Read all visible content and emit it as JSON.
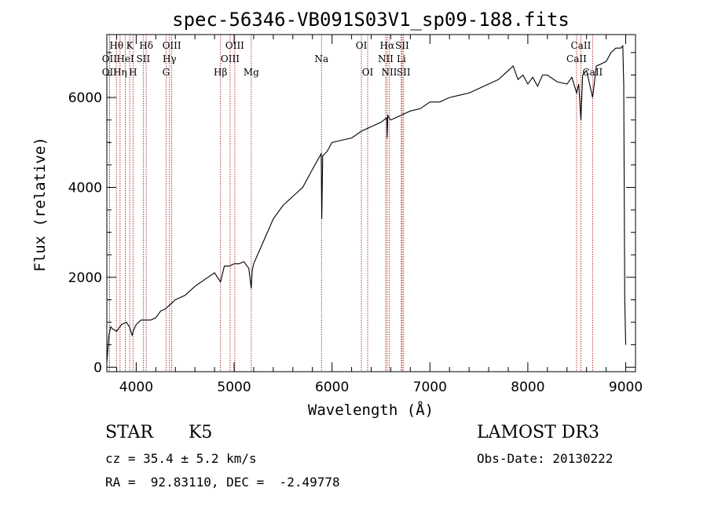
{
  "chart_data": {
    "type": "line",
    "title": "spec-56346-VB091S03V1_sp09-188.fits",
    "xlabel": "Wavelength (Å)",
    "ylabel": "Flux (relative)",
    "xlim": [
      3700,
      9100
    ],
    "ylim": [
      -100,
      7400
    ],
    "xticks": [
      4000,
      5000,
      6000,
      7000,
      8000,
      9000
    ],
    "xtick_labels": [
      "4000",
      "5000",
      "6000",
      "7000",
      "8000",
      "9000"
    ],
    "yticks": [
      0,
      2000,
      4000,
      6000
    ],
    "ytick_labels": [
      "0",
      "2000",
      "4000",
      "6000"
    ],
    "series": [
      {
        "name": "spectrum",
        "color": "#000000",
        "x": [
          3700,
          3720,
          3740,
          3760,
          3800,
          3850,
          3900,
          3930,
          3960,
          3968,
          4000,
          4050,
          4100,
          4150,
          4200,
          4250,
          4300,
          4350,
          4400,
          4500,
          4600,
          4700,
          4800,
          4861,
          4900,
          4950,
          5000,
          5050,
          5100,
          5150,
          5175,
          5185,
          5200,
          5300,
          5400,
          5500,
          5600,
          5700,
          5800,
          5850,
          5890,
          5895,
          5905,
          5950,
          6000,
          6100,
          6200,
          6300,
          6400,
          6500,
          6560,
          6563,
          6570,
          6600,
          6700,
          6800,
          6900,
          7000,
          7100,
          7200,
          7300,
          7400,
          7500,
          7600,
          7700,
          7800,
          7850,
          7900,
          7950,
          8000,
          8050,
          8100,
          8150,
          8200,
          8300,
          8400,
          8450,
          8498,
          8520,
          8542,
          8560,
          8600,
          8662,
          8700,
          8750,
          8800,
          8850,
          8900,
          8950,
          8970,
          8980,
          8990,
          9000
        ],
        "values": [
          100,
          700,
          900,
          850,
          800,
          950,
          1000,
          900,
          700,
          800,
          950,
          1050,
          1050,
          1050,
          1100,
          1250,
          1300,
          1400,
          1500,
          1600,
          1800,
          1950,
          2100,
          1900,
          2250,
          2250,
          2300,
          2300,
          2350,
          2200,
          1750,
          2150,
          2300,
          2800,
          3300,
          3600,
          3800,
          4000,
          4400,
          4600,
          4750,
          3300,
          4700,
          4800,
          5000,
          5050,
          5100,
          5250,
          5350,
          5450,
          5550,
          5100,
          5600,
          5500,
          5600,
          5700,
          5750,
          5900,
          5900,
          6000,
          6050,
          6100,
          6200,
          6300,
          6400,
          6600,
          6700,
          6400,
          6500,
          6300,
          6450,
          6250,
          6500,
          6500,
          6350,
          6300,
          6450,
          6100,
          6300,
          5500,
          6500,
          6600,
          6000,
          6700,
          6750,
          6800,
          7000,
          7100,
          7100,
          7150,
          6300,
          1500,
          500
        ]
      }
    ],
    "lines": [
      {
        "label": "Hθ",
        "wl": 3798,
        "row": 0
      },
      {
        "label": "OII",
        "wl": 3727,
        "row": 1
      },
      {
        "label": "OII",
        "wl": 3727,
        "row": 2
      },
      {
        "label": "Hη",
        "wl": 3835,
        "row": 2
      },
      {
        "label": "HeI",
        "wl": 3889,
        "row": 1
      },
      {
        "label": "K",
        "wl": 3934,
        "row": 0
      },
      {
        "label": "H",
        "wl": 3968,
        "row": 2
      },
      {
        "label": "SII",
        "wl": 4072,
        "row": 1
      },
      {
        "label": "Hδ",
        "wl": 4102,
        "row": 0
      },
      {
        "label": "OIII",
        "wl": 4363,
        "row": 0
      },
      {
        "label": "Hγ",
        "wl": 4340,
        "row": 1
      },
      {
        "label": "G",
        "wl": 4305,
        "row": 2
      },
      {
        "label": "Hβ",
        "wl": 4861,
        "row": 2
      },
      {
        "label": "OIII",
        "wl": 5007,
        "row": 0
      },
      {
        "label": "OIII",
        "wl": 4959,
        "row": 1
      },
      {
        "label": "Mg",
        "wl": 5175,
        "row": 2
      },
      {
        "label": "Na",
        "wl": 5893,
        "row": 1
      },
      {
        "label": "OI",
        "wl": 6300,
        "row": 0
      },
      {
        "label": "OI",
        "wl": 6364,
        "row": 2
      },
      {
        "label": "Hα",
        "wl": 6563,
        "row": 0
      },
      {
        "label": "NII",
        "wl": 6548,
        "row": 1
      },
      {
        "label": "NII",
        "wl": 6584,
        "row": 2
      },
      {
        "label": "SII",
        "wl": 6716,
        "row": 0
      },
      {
        "label": "Li",
        "wl": 6708,
        "row": 1
      },
      {
        "label": "SII",
        "wl": 6731,
        "row": 2
      },
      {
        "label": "CaII",
        "wl": 8542,
        "row": 0
      },
      {
        "label": "CaII",
        "wl": 8498,
        "row": 1
      },
      {
        "label": "CaII",
        "wl": 8662,
        "row": 2
      }
    ],
    "line_color": "#b22222"
  },
  "info": {
    "object_class": "STAR",
    "subclass": "K5",
    "survey": "LAMOST DR3",
    "cz": "cz = 35.4 ± 5.2 km/s",
    "obs_date": "Obs-Date: 20130222",
    "coords": "RA =  92.83110, DEC =  -2.49778"
  }
}
